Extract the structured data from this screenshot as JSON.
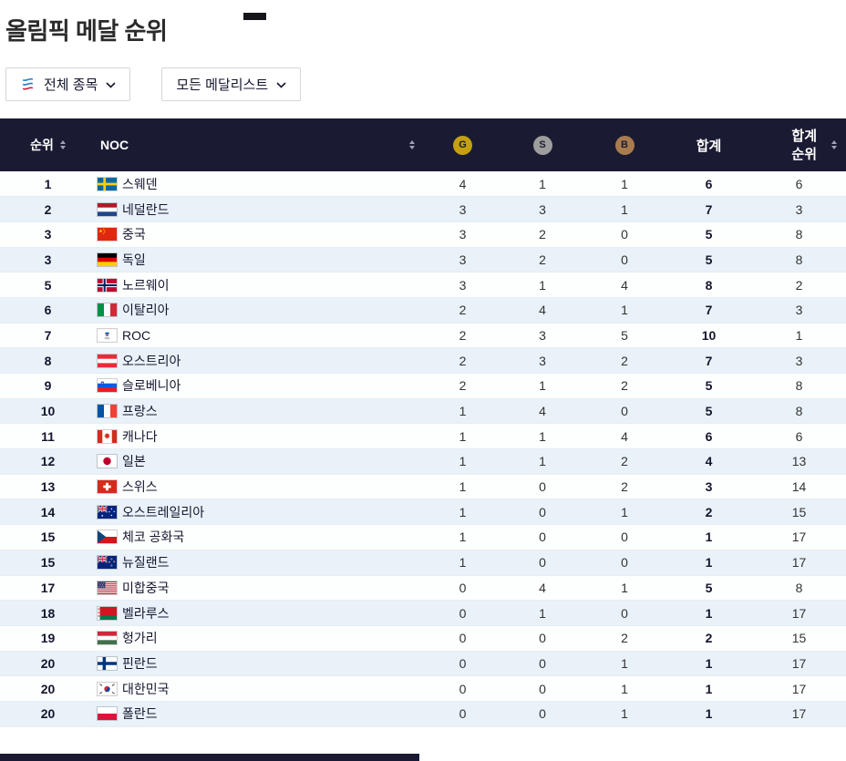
{
  "title": "올림픽 메달 순위",
  "filters": {
    "sport": {
      "label": "전체 종목",
      "icon": "olympic-emblem-icon"
    },
    "medalist": {
      "label": "모든 메달리스트",
      "icon": "chevron-down-icon"
    }
  },
  "table": {
    "headers": {
      "rank": "순위",
      "noc": "NOC",
      "gold": "G",
      "silver": "S",
      "bronze": "B",
      "total": "합계",
      "total_rank": [
        "합계",
        "순위"
      ]
    },
    "rows": [
      {
        "rank": "1",
        "flag": "se",
        "country": "스웨덴",
        "gold": 4,
        "silver": 1,
        "bronze": 1,
        "total": 6,
        "total_rank": 6
      },
      {
        "rank": "2",
        "flag": "nl",
        "country": "네덜란드",
        "gold": 3,
        "silver": 3,
        "bronze": 1,
        "total": 7,
        "total_rank": 3
      },
      {
        "rank": "3",
        "flag": "cn",
        "country": "중국",
        "gold": 3,
        "silver": 2,
        "bronze": 0,
        "total": 5,
        "total_rank": 8
      },
      {
        "rank": "3",
        "flag": "de",
        "country": "독일",
        "gold": 3,
        "silver": 2,
        "bronze": 0,
        "total": 5,
        "total_rank": 8
      },
      {
        "rank": "5",
        "flag": "no",
        "country": "노르웨이",
        "gold": 3,
        "silver": 1,
        "bronze": 4,
        "total": 8,
        "total_rank": 2
      },
      {
        "rank": "6",
        "flag": "it",
        "country": "이탈리아",
        "gold": 2,
        "silver": 4,
        "bronze": 1,
        "total": 7,
        "total_rank": 3
      },
      {
        "rank": "7",
        "flag": "roc",
        "country": "ROC",
        "gold": 2,
        "silver": 3,
        "bronze": 5,
        "total": 10,
        "total_rank": 1
      },
      {
        "rank": "8",
        "flag": "at",
        "country": "오스트리아",
        "gold": 2,
        "silver": 3,
        "bronze": 2,
        "total": 7,
        "total_rank": 3
      },
      {
        "rank": "9",
        "flag": "si",
        "country": "슬로베니아",
        "gold": 2,
        "silver": 1,
        "bronze": 2,
        "total": 5,
        "total_rank": 8
      },
      {
        "rank": "10",
        "flag": "fr",
        "country": "프랑스",
        "gold": 1,
        "silver": 4,
        "bronze": 0,
        "total": 5,
        "total_rank": 8
      },
      {
        "rank": "11",
        "flag": "ca",
        "country": "캐나다",
        "gold": 1,
        "silver": 1,
        "bronze": 4,
        "total": 6,
        "total_rank": 6
      },
      {
        "rank": "12",
        "flag": "jp",
        "country": "일본",
        "gold": 1,
        "silver": 1,
        "bronze": 2,
        "total": 4,
        "total_rank": 13
      },
      {
        "rank": "13",
        "flag": "ch",
        "country": "스위스",
        "gold": 1,
        "silver": 0,
        "bronze": 2,
        "total": 3,
        "total_rank": 14
      },
      {
        "rank": "14",
        "flag": "au",
        "country": "오스트레일리아",
        "gold": 1,
        "silver": 0,
        "bronze": 1,
        "total": 2,
        "total_rank": 15
      },
      {
        "rank": "15",
        "flag": "cz",
        "country": "체코 공화국",
        "gold": 1,
        "silver": 0,
        "bronze": 0,
        "total": 1,
        "total_rank": 17
      },
      {
        "rank": "15",
        "flag": "nz",
        "country": "뉴질랜드",
        "gold": 1,
        "silver": 0,
        "bronze": 0,
        "total": 1,
        "total_rank": 17
      },
      {
        "rank": "17",
        "flag": "us",
        "country": "미합중국",
        "gold": 0,
        "silver": 4,
        "bronze": 1,
        "total": 5,
        "total_rank": 8
      },
      {
        "rank": "18",
        "flag": "by",
        "country": "벨라루스",
        "gold": 0,
        "silver": 1,
        "bronze": 0,
        "total": 1,
        "total_rank": 17
      },
      {
        "rank": "19",
        "flag": "hu",
        "country": "헝가리",
        "gold": 0,
        "silver": 0,
        "bronze": 2,
        "total": 2,
        "total_rank": 15
      },
      {
        "rank": "20",
        "flag": "fi",
        "country": "핀란드",
        "gold": 0,
        "silver": 0,
        "bronze": 1,
        "total": 1,
        "total_rank": 17
      },
      {
        "rank": "20",
        "flag": "kr",
        "country": "대한민국",
        "gold": 0,
        "silver": 0,
        "bronze": 1,
        "total": 1,
        "total_rank": 17
      },
      {
        "rank": "20",
        "flag": "pl",
        "country": "폴란드",
        "gold": 0,
        "silver": 0,
        "bronze": 1,
        "total": 1,
        "total_rank": 17
      }
    ]
  },
  "colors": {
    "header_bg": "#1a1b33",
    "row_alt": "#e9f2f9",
    "gold": "#c4a00f",
    "silver": "#9d9d9d",
    "bronze": "#a97c50"
  }
}
